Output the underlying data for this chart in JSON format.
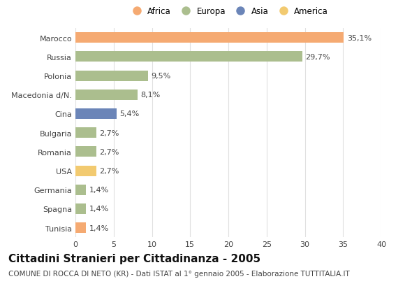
{
  "categories": [
    "Marocco",
    "Russia",
    "Polonia",
    "Macedonia d/N.",
    "Cina",
    "Bulgaria",
    "Romania",
    "USA",
    "Germania",
    "Spagna",
    "Tunisia"
  ],
  "values": [
    35.1,
    29.7,
    9.5,
    8.1,
    5.4,
    2.7,
    2.7,
    2.7,
    1.4,
    1.4,
    1.4
  ],
  "labels": [
    "35,1%",
    "29,7%",
    "9,5%",
    "8,1%",
    "5,4%",
    "2,7%",
    "2,7%",
    "2,7%",
    "1,4%",
    "1,4%",
    "1,4%"
  ],
  "colors": [
    "#F5AA72",
    "#ABBE8E",
    "#ABBE8E",
    "#ABBE8E",
    "#6B85B8",
    "#ABBE8E",
    "#ABBE8E",
    "#F2CA70",
    "#ABBE8E",
    "#ABBE8E",
    "#F5AA72"
  ],
  "legend_labels": [
    "Africa",
    "Europa",
    "Asia",
    "America"
  ],
  "legend_colors": [
    "#F5AA72",
    "#ABBE8E",
    "#6B85B8",
    "#F2CA70"
  ],
  "xlim": [
    0,
    40
  ],
  "xticks": [
    0,
    5,
    10,
    15,
    20,
    25,
    30,
    35,
    40
  ],
  "title": "Cittadini Stranieri per Cittadinanza - 2005",
  "subtitle": "COMUNE DI ROCCA DI NETO (KR) - Dati ISTAT al 1° gennaio 2005 - Elaborazione TUTTITALIA.IT",
  "bg_color": "#ffffff",
  "bar_height": 0.55,
  "grid_color": "#e0e0e0",
  "title_fontsize": 11,
  "subtitle_fontsize": 7.5,
  "label_fontsize": 8,
  "ytick_fontsize": 8,
  "xtick_fontsize": 8,
  "legend_fontsize": 8.5
}
